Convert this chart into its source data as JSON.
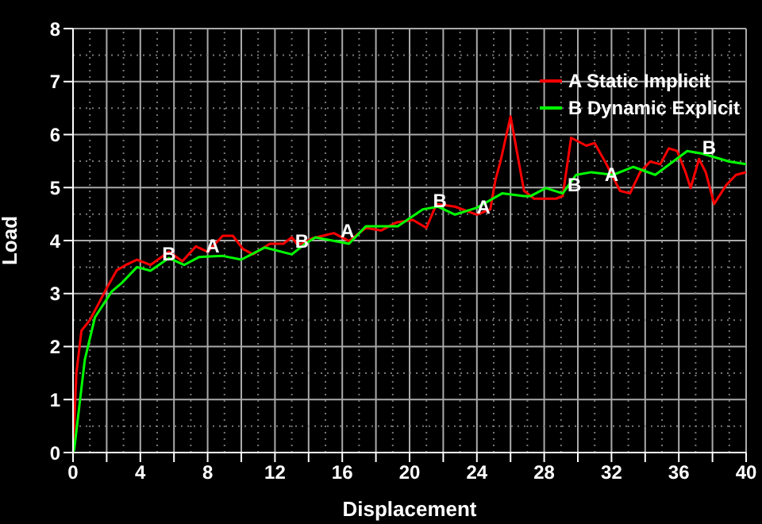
{
  "chart_data": {
    "type": "line",
    "xlabel": "Displacement",
    "ylabel": "Load",
    "xlim": [
      0,
      40
    ],
    "ylim": [
      0,
      8
    ],
    "xticks": [
      0,
      {
        "value": 2,
        "label": null
      },
      4,
      {
        "value": 6,
        "label": null
      },
      8,
      {
        "value": 10,
        "label": null
      },
      12,
      {
        "value": 14,
        "label": null
      },
      16,
      {
        "value": 18,
        "label": null
      },
      20,
      {
        "value": 22,
        "label": null
      },
      24,
      {
        "value": 26,
        "label": null
      },
      28,
      {
        "value": 30,
        "label": null
      },
      32,
      {
        "value": 34,
        "label": null
      },
      36,
      {
        "value": 38,
        "label": null
      },
      40
    ],
    "yticks": [
      0,
      1,
      2,
      3,
      4,
      5,
      6,
      7,
      8
    ],
    "grid": true,
    "legend": "top right",
    "marker": "none",
    "line_style": "solid",
    "series": [
      {
        "name": "A  Static Implicit",
        "color": "#ff0000",
        "x": [
          0,
          0.2,
          0.5,
          1,
          1.5,
          2,
          2.6,
          3.2,
          3.8,
          4.6,
          5.7,
          6.5,
          7.3,
          8.0,
          8.9,
          9.5,
          10.1,
          10.7,
          11.7,
          12.5,
          13.0,
          13.3,
          13.6,
          14.2,
          15.5,
          16.4,
          17.4,
          18.3,
          19.2,
          20.2,
          21.0,
          21.6,
          22.7,
          24.0,
          24.8,
          25.1,
          25.4,
          26.0,
          26.8,
          27.4,
          28.7,
          29.1,
          29.6,
          30.5,
          31.0,
          31.7,
          32.5,
          33.1,
          33.7,
          34.3,
          34.9,
          35.4,
          35.9,
          36.4,
          36.7,
          37.2,
          37.6,
          38.1,
          38.8,
          39.4,
          40
        ],
        "values": [
          0,
          1.5,
          2.3,
          2.5,
          2.8,
          3.1,
          3.44,
          3.55,
          3.64,
          3.54,
          3.79,
          3.61,
          3.89,
          3.79,
          4.09,
          4.09,
          3.84,
          3.74,
          3.94,
          3.94,
          4.06,
          3.94,
          3.94,
          4.04,
          4.14,
          3.99,
          4.24,
          4.19,
          4.34,
          4.39,
          4.24,
          4.69,
          4.64,
          4.49,
          4.59,
          5.14,
          5.49,
          6.34,
          4.94,
          4.79,
          4.79,
          4.84,
          5.94,
          5.79,
          5.84,
          5.44,
          4.94,
          4.89,
          5.29,
          5.49,
          5.44,
          5.74,
          5.69,
          5.29,
          4.99,
          5.54,
          5.29,
          4.69,
          5.04,
          5.24,
          5.29
        ]
      },
      {
        "name": "B  Dynamic Explicit",
        "color": "#00ff00",
        "x": [
          0,
          0.07,
          0.7,
          1.3,
          2.3,
          2.9,
          3.8,
          4.6,
          5.7,
          6.6,
          7.5,
          8.9,
          10.0,
          11.4,
          13.0,
          13.8,
          14.4,
          16.4,
          17.4,
          19.3,
          20.8,
          21.7,
          22.7,
          24.0,
          25.5,
          26.8,
          27.2,
          28.1,
          29.1,
          29.9,
          30.8,
          32.1,
          33.3,
          34.6,
          36.5,
          37.4,
          39.0,
          40
        ],
        "values": [
          0,
          0.06,
          1.75,
          2.55,
          3.04,
          3.2,
          3.5,
          3.43,
          3.67,
          3.54,
          3.69,
          3.71,
          3.64,
          3.87,
          3.74,
          3.94,
          4.06,
          3.94,
          4.27,
          4.27,
          4.59,
          4.64,
          4.49,
          4.62,
          4.89,
          4.84,
          4.84,
          4.99,
          4.89,
          5.24,
          5.29,
          5.24,
          5.39,
          5.24,
          5.69,
          5.64,
          5.49,
          5.44
        ]
      }
    ],
    "annotations": [
      {
        "text": "A",
        "x": 8.3,
        "y": 3.9
      },
      {
        "text": "A",
        "x": 16.3,
        "y": 4.19
      },
      {
        "text": "A",
        "x": 24.4,
        "y": 4.64
      },
      {
        "text": "A",
        "x": 32.0,
        "y": 5.25
      },
      {
        "text": "B",
        "x": 5.7,
        "y": 3.76
      },
      {
        "text": "B",
        "x": 13.6,
        "y": 3.99
      },
      {
        "text": "B",
        "x": 21.8,
        "y": 4.76
      },
      {
        "text": "B",
        "x": 29.8,
        "y": 5.06
      },
      {
        "text": "B",
        "x": 37.8,
        "y": 5.76
      }
    ]
  }
}
